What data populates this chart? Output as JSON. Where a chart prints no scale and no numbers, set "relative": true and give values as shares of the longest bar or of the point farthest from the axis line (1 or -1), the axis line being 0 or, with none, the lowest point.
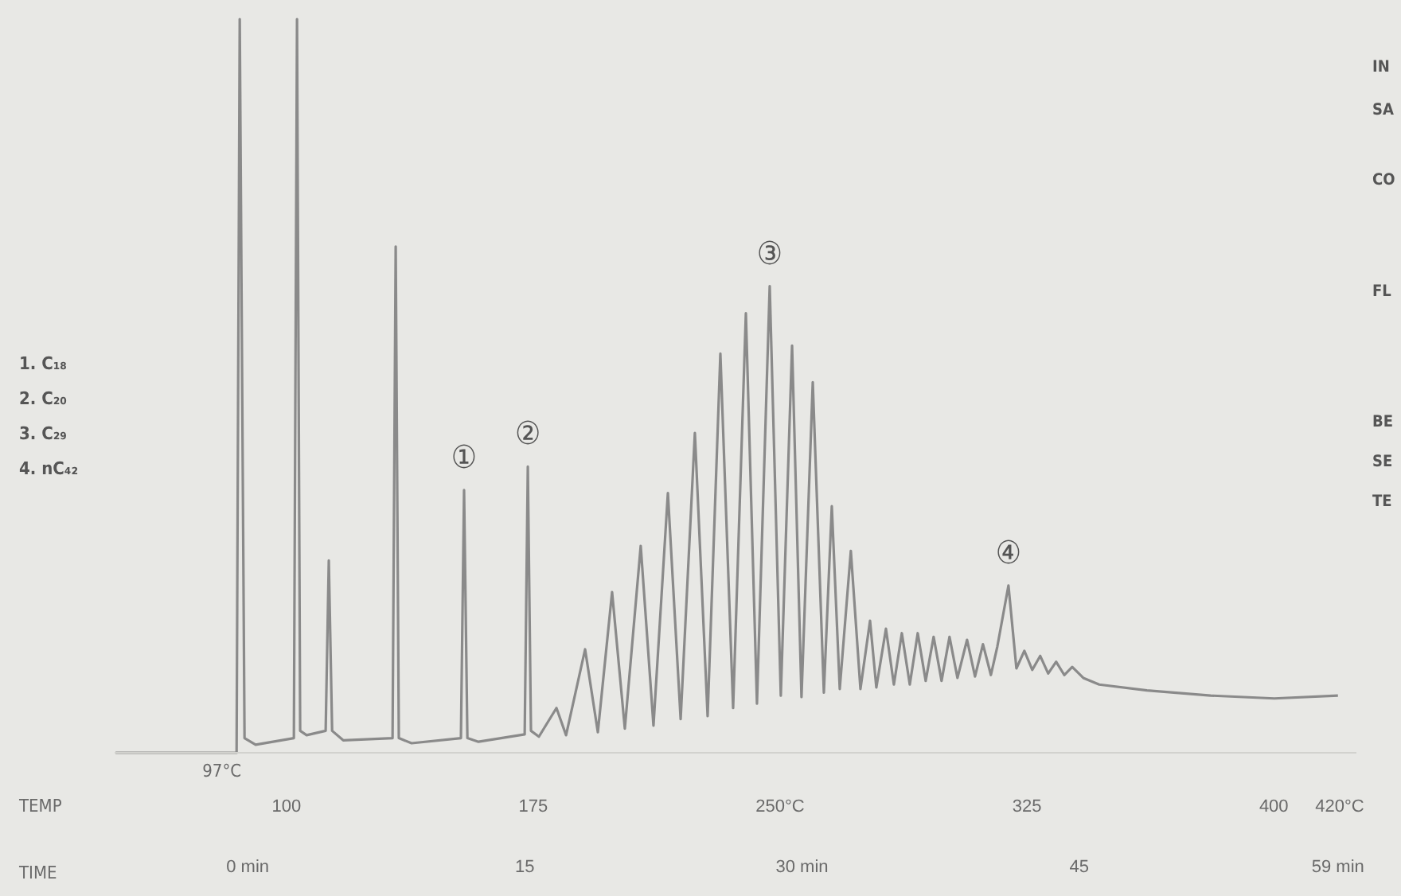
{
  "chart_data": {
    "type": "line",
    "relative": true,
    "xlabel": "TIME",
    "x2label": "TEMP",
    "xlim": [
      -7.2,
      60
    ],
    "xticks": [
      {
        "value": 0,
        "label": "0 min"
      },
      15,
      {
        "value": 30,
        "label": "30 min"
      },
      45,
      {
        "value": 59,
        "label": "59 min"
      }
    ],
    "x2lim": [
      47.8,
      425.1
    ],
    "x2ticks": [
      100,
      175,
      {
        "value": 250,
        "label": "250°C"
      },
      325,
      400,
      {
        "value": 420,
        "label": "420°C"
      }
    ],
    "series": [
      {
        "color": "#8a8a8a",
        "x": [
          -7.15,
          -0.6,
          -0.43,
          -0.17,
          0.43,
          2.5,
          2.67,
          2.84,
          3.19,
          4.22,
          4.39,
          4.57,
          5.17,
          7.84,
          8.01,
          8.18,
          8.87,
          11.54,
          11.71,
          11.89,
          12.49,
          14.99,
          15.16,
          15.33,
          15.76,
          16.71,
          17.23,
          18.26,
          18.95,
          19.72,
          20.41,
          21.27,
          21.96,
          22.74,
          23.43,
          24.2,
          24.89,
          25.58,
          26.27,
          26.96,
          27.56,
          28.25,
          28.85,
          29.46,
          29.97,
          30.58,
          31.18,
          31.61,
          32.04,
          32.64,
          33.16,
          33.68,
          34.02,
          34.54,
          34.97,
          35.4,
          35.83,
          36.26,
          36.69,
          37.12,
          37.55,
          37.98,
          38.41,
          38.93,
          39.36,
          39.79,
          40.22,
          40.57,
          41.17,
          41.6,
          42.03,
          42.46,
          42.89,
          43.32,
          43.75,
          44.19,
          44.62,
          45.22,
          46.08,
          48.66,
          52.11,
          55.56,
          59
        ],
        "values": [
          0,
          0,
          1,
          0.02,
          0.011,
          0.02,
          1,
          0.03,
          0.024,
          0.03,
          0.262,
          0.03,
          0.017,
          0.02,
          0.69,
          0.02,
          0.013,
          0.02,
          0.358,
          0.02,
          0.015,
          0.025,
          0.39,
          0.03,
          0.022,
          0.061,
          0.024,
          0.141,
          0.028,
          0.219,
          0.033,
          0.282,
          0.037,
          0.354,
          0.046,
          0.436,
          0.05,
          0.544,
          0.061,
          0.599,
          0.067,
          0.636,
          0.078,
          0.555,
          0.076,
          0.505,
          0.082,
          0.336,
          0.087,
          0.275,
          0.087,
          0.18,
          0.089,
          0.169,
          0.093,
          0.163,
          0.093,
          0.163,
          0.098,
          0.158,
          0.098,
          0.158,
          0.102,
          0.154,
          0.104,
          0.148,
          0.106,
          0.145,
          0.228,
          0.115,
          0.139,
          0.113,
          0.132,
          0.108,
          0.124,
          0.106,
          0.117,
          0.102,
          0.093,
          0.085,
          0.078,
          0.074,
          0.078
        ]
      }
    ],
    "annotations": [
      {
        "text": "①",
        "x": 11.71,
        "y": 0.358
      },
      {
        "text": "②",
        "x": 15.16,
        "y": 0.39
      },
      {
        "text": "③",
        "x": 28.25,
        "y": 0.636
      },
      {
        "text": "④",
        "x": 41.17,
        "y": 0.228
      },
      "1.  C₁₈",
      "2.  C₂₀",
      "3.  C₂₉",
      "4.  nC₄₂",
      "IN",
      "SA",
      "CO",
      "FL",
      "BE",
      "SE",
      "TE",
      "97°C"
    ]
  }
}
